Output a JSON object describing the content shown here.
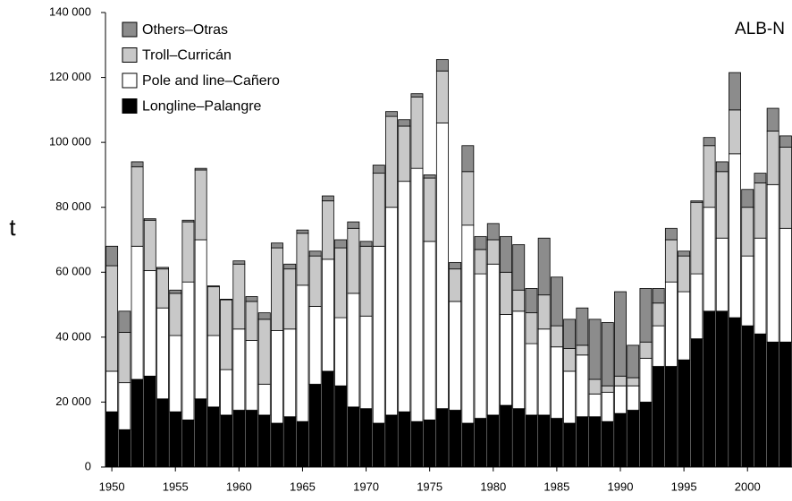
{
  "chart_data": {
    "type": "stacked_bar",
    "annotation": "ALB-N",
    "y_label": "t",
    "x": [
      1950,
      1951,
      1952,
      1953,
      1954,
      1955,
      1956,
      1957,
      1958,
      1959,
      1960,
      1961,
      1962,
      1963,
      1964,
      1965,
      1966,
      1967,
      1968,
      1969,
      1970,
      1971,
      1972,
      1973,
      1974,
      1975,
      1976,
      1977,
      1978,
      1979,
      1980,
      1981,
      1982,
      1983,
      1984,
      1985,
      1986,
      1987,
      1988,
      1989,
      1990,
      1991,
      1992,
      1993,
      1994,
      1995,
      1996,
      1997,
      1998,
      1999,
      2000,
      2001,
      2002,
      2003
    ],
    "xlim": [
      1949.5,
      2003.5
    ],
    "xticks": [
      1950,
      1955,
      1960,
      1965,
      1970,
      1975,
      1980,
      1985,
      1990,
      1995,
      2000
    ],
    "ylim": [
      0,
      140000
    ],
    "yticks": [
      0,
      {
        "value": 20000,
        "label": "20 000"
      },
      {
        "value": 40000,
        "label": "40 000"
      },
      {
        "value": 60000,
        "label": "60 000"
      },
      {
        "value": 80000,
        "label": "80 000"
      },
      {
        "value": 100000,
        "label": "100 000"
      },
      {
        "value": 120000,
        "label": "120 000"
      },
      {
        "value": 140000,
        "label": "140 000"
      }
    ],
    "series": [
      {
        "name": "Longline–Palangre",
        "color": "#000000",
        "values": [
          17000,
          11500,
          27000,
          28000,
          21000,
          17000,
          14500,
          21000,
          18500,
          16000,
          17500,
          17500,
          16000,
          13500,
          15500,
          14000,
          25500,
          29500,
          25000,
          18500,
          18000,
          13500,
          16000,
          17000,
          14000,
          14500,
          18000,
          17500,
          13500,
          15000,
          16000,
          19000,
          18000,
          16000,
          16000,
          15000,
          13500,
          15500,
          15500,
          14000,
          16500,
          17500,
          20000,
          31000,
          31000,
          33000,
          39500,
          48000,
          48000,
          46000,
          43500,
          41000,
          38500,
          38500
        ]
      },
      {
        "name": "Pole and line–Cañero",
        "color": "#ffffff",
        "values": [
          12500,
          14500,
          41000,
          32500,
          28000,
          23500,
          42500,
          49000,
          22000,
          14000,
          25000,
          21500,
          9500,
          28500,
          27000,
          42000,
          24000,
          34500,
          21000,
          35000,
          28500,
          54500,
          64000,
          71000,
          78000,
          55000,
          88000,
          33500,
          61000,
          44500,
          46500,
          28000,
          30000,
          22000,
          26500,
          22000,
          16000,
          19000,
          7000,
          9000,
          8500,
          7500,
          13500,
          12500,
          26000,
          21000,
          20000,
          32000,
          22500,
          50500,
          21500,
          29500,
          48500,
          35000
        ]
      },
      {
        "name": "Troll–Curricán",
        "color": "#c8c8c8",
        "values": [
          32500,
          15500,
          24500,
          15500,
          12000,
          13000,
          18500,
          21500,
          15000,
          21500,
          20000,
          12000,
          20000,
          25500,
          18500,
          16000,
          15500,
          18000,
          21500,
          20000,
          21500,
          22500,
          28000,
          17000,
          22000,
          19500,
          16000,
          10000,
          16500,
          7500,
          7500,
          13000,
          6500,
          9500,
          10500,
          6500,
          7000,
          3000,
          4500,
          2000,
          3000,
          2500,
          5000,
          7000,
          13000,
          11000,
          22000,
          19000,
          20500,
          13500,
          15000,
          17000,
          16500,
          25000
        ]
      },
      {
        "name": "Others–Otras",
        "color": "#8c8c8c",
        "values": [
          6000,
          6500,
          1500,
          500,
          500,
          1000,
          500,
          500,
          300,
          200,
          1000,
          1500,
          2000,
          1500,
          1500,
          1000,
          1500,
          1500,
          2500,
          2000,
          1500,
          2500,
          1500,
          2000,
          1000,
          1000,
          3500,
          2000,
          8000,
          4000,
          5000,
          11000,
          14000,
          7500,
          17500,
          15000,
          9000,
          11500,
          18500,
          19500,
          26000,
          10000,
          16500,
          4500,
          3500,
          1500,
          500,
          2500,
          3000,
          11500,
          5500,
          3000,
          7000,
          3500
        ]
      }
    ],
    "legend": "upper left"
  }
}
